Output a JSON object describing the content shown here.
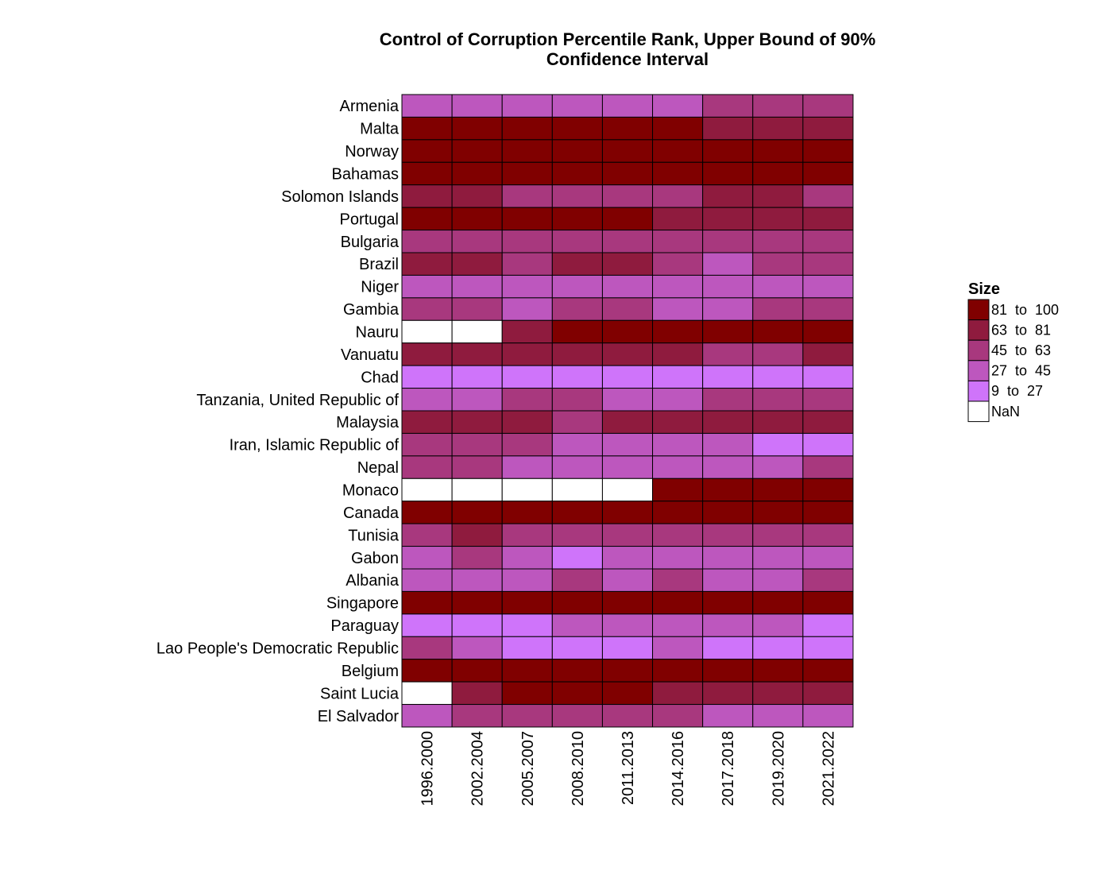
{
  "chart_data": {
    "type": "heatmap",
    "title": "Control of Corruption Percentile Rank, Upper Bound of 90%",
    "subtitle": "Confidence Interval",
    "xlabel": "",
    "ylabel": "",
    "columns": [
      "1996.2000",
      "2002.2004",
      "2005.2007",
      "2008.2010",
      "2011.2013",
      "2014.2016",
      "2017.2018",
      "2019.2020",
      "2021.2022"
    ],
    "rows": [
      "Armenia",
      "Malta",
      "Norway",
      "Bahamas",
      "Solomon Islands",
      "Portugal",
      "Bulgaria",
      "Brazil",
      "Niger",
      "Gambia",
      "Nauru",
      "Vanuatu",
      "Chad",
      "Tanzania, United Republic of",
      "Malaysia",
      "Iran, Islamic Republic of",
      "Nepal",
      "Monaco",
      "Canada",
      "Tunisia",
      "Gabon",
      "Albania",
      "Singapore",
      "Paraguay",
      "Lao People's Democratic Republic",
      "Belgium",
      "Saint Lucia",
      "El Salvador"
    ],
    "bins": [
      {
        "label": "81  to  100",
        "color": "#800000"
      },
      {
        "label": "63  to  81",
        "color": "#8F1B3E"
      },
      {
        "label": "45  to  63",
        "color": "#A8387E"
      },
      {
        "label": "27  to  45",
        "color": "#BD57BE"
      },
      {
        "label": "9  to  27",
        "color": "#CF74FA"
      },
      {
        "label": "NaN",
        "color": "#FFFFFF"
      }
    ],
    "cell_bins": [
      [
        3,
        3,
        3,
        3,
        3,
        3,
        2,
        2,
        2
      ],
      [
        0,
        0,
        0,
        0,
        0,
        0,
        1,
        1,
        1
      ],
      [
        0,
        0,
        0,
        0,
        0,
        0,
        0,
        0,
        0
      ],
      [
        0,
        0,
        0,
        0,
        0,
        0,
        0,
        0,
        0
      ],
      [
        1,
        1,
        2,
        2,
        2,
        2,
        1,
        1,
        2
      ],
      [
        0,
        0,
        0,
        0,
        0,
        1,
        1,
        1,
        1
      ],
      [
        2,
        2,
        2,
        2,
        2,
        2,
        2,
        2,
        2
      ],
      [
        1,
        1,
        2,
        1,
        1,
        2,
        3,
        2,
        2
      ],
      [
        3,
        3,
        3,
        3,
        3,
        3,
        3,
        3,
        3
      ],
      [
        2,
        2,
        3,
        2,
        2,
        3,
        3,
        2,
        2
      ],
      [
        5,
        5,
        1,
        0,
        0,
        0,
        0,
        0,
        0
      ],
      [
        1,
        1,
        1,
        1,
        1,
        1,
        2,
        2,
        1
      ],
      [
        4,
        4,
        4,
        4,
        4,
        4,
        4,
        4,
        4
      ],
      [
        3,
        3,
        2,
        2,
        3,
        3,
        2,
        2,
        2
      ],
      [
        1,
        1,
        1,
        2,
        1,
        1,
        1,
        1,
        1
      ],
      [
        2,
        2,
        2,
        3,
        3,
        3,
        3,
        4,
        4
      ],
      [
        2,
        2,
        3,
        3,
        3,
        3,
        3,
        3,
        2
      ],
      [
        5,
        5,
        5,
        5,
        5,
        0,
        0,
        0,
        0
      ],
      [
        0,
        0,
        0,
        0,
        0,
        0,
        0,
        0,
        0
      ],
      [
        2,
        1,
        2,
        2,
        2,
        2,
        2,
        2,
        2
      ],
      [
        3,
        2,
        3,
        4,
        3,
        3,
        3,
        3,
        3
      ],
      [
        3,
        3,
        3,
        2,
        3,
        2,
        3,
        3,
        2
      ],
      [
        0,
        0,
        0,
        0,
        0,
        0,
        0,
        0,
        0
      ],
      [
        4,
        4,
        4,
        3,
        3,
        3,
        3,
        3,
        4
      ],
      [
        2,
        3,
        4,
        4,
        4,
        3,
        4,
        4,
        4
      ],
      [
        0,
        0,
        0,
        0,
        0,
        0,
        0,
        0,
        0
      ],
      [
        5,
        1,
        0,
        0,
        0,
        1,
        1,
        1,
        1
      ],
      [
        3,
        2,
        2,
        2,
        2,
        2,
        3,
        3,
        3
      ]
    ],
    "legend_title": "Size",
    "legend_position": "right",
    "grid": false
  }
}
